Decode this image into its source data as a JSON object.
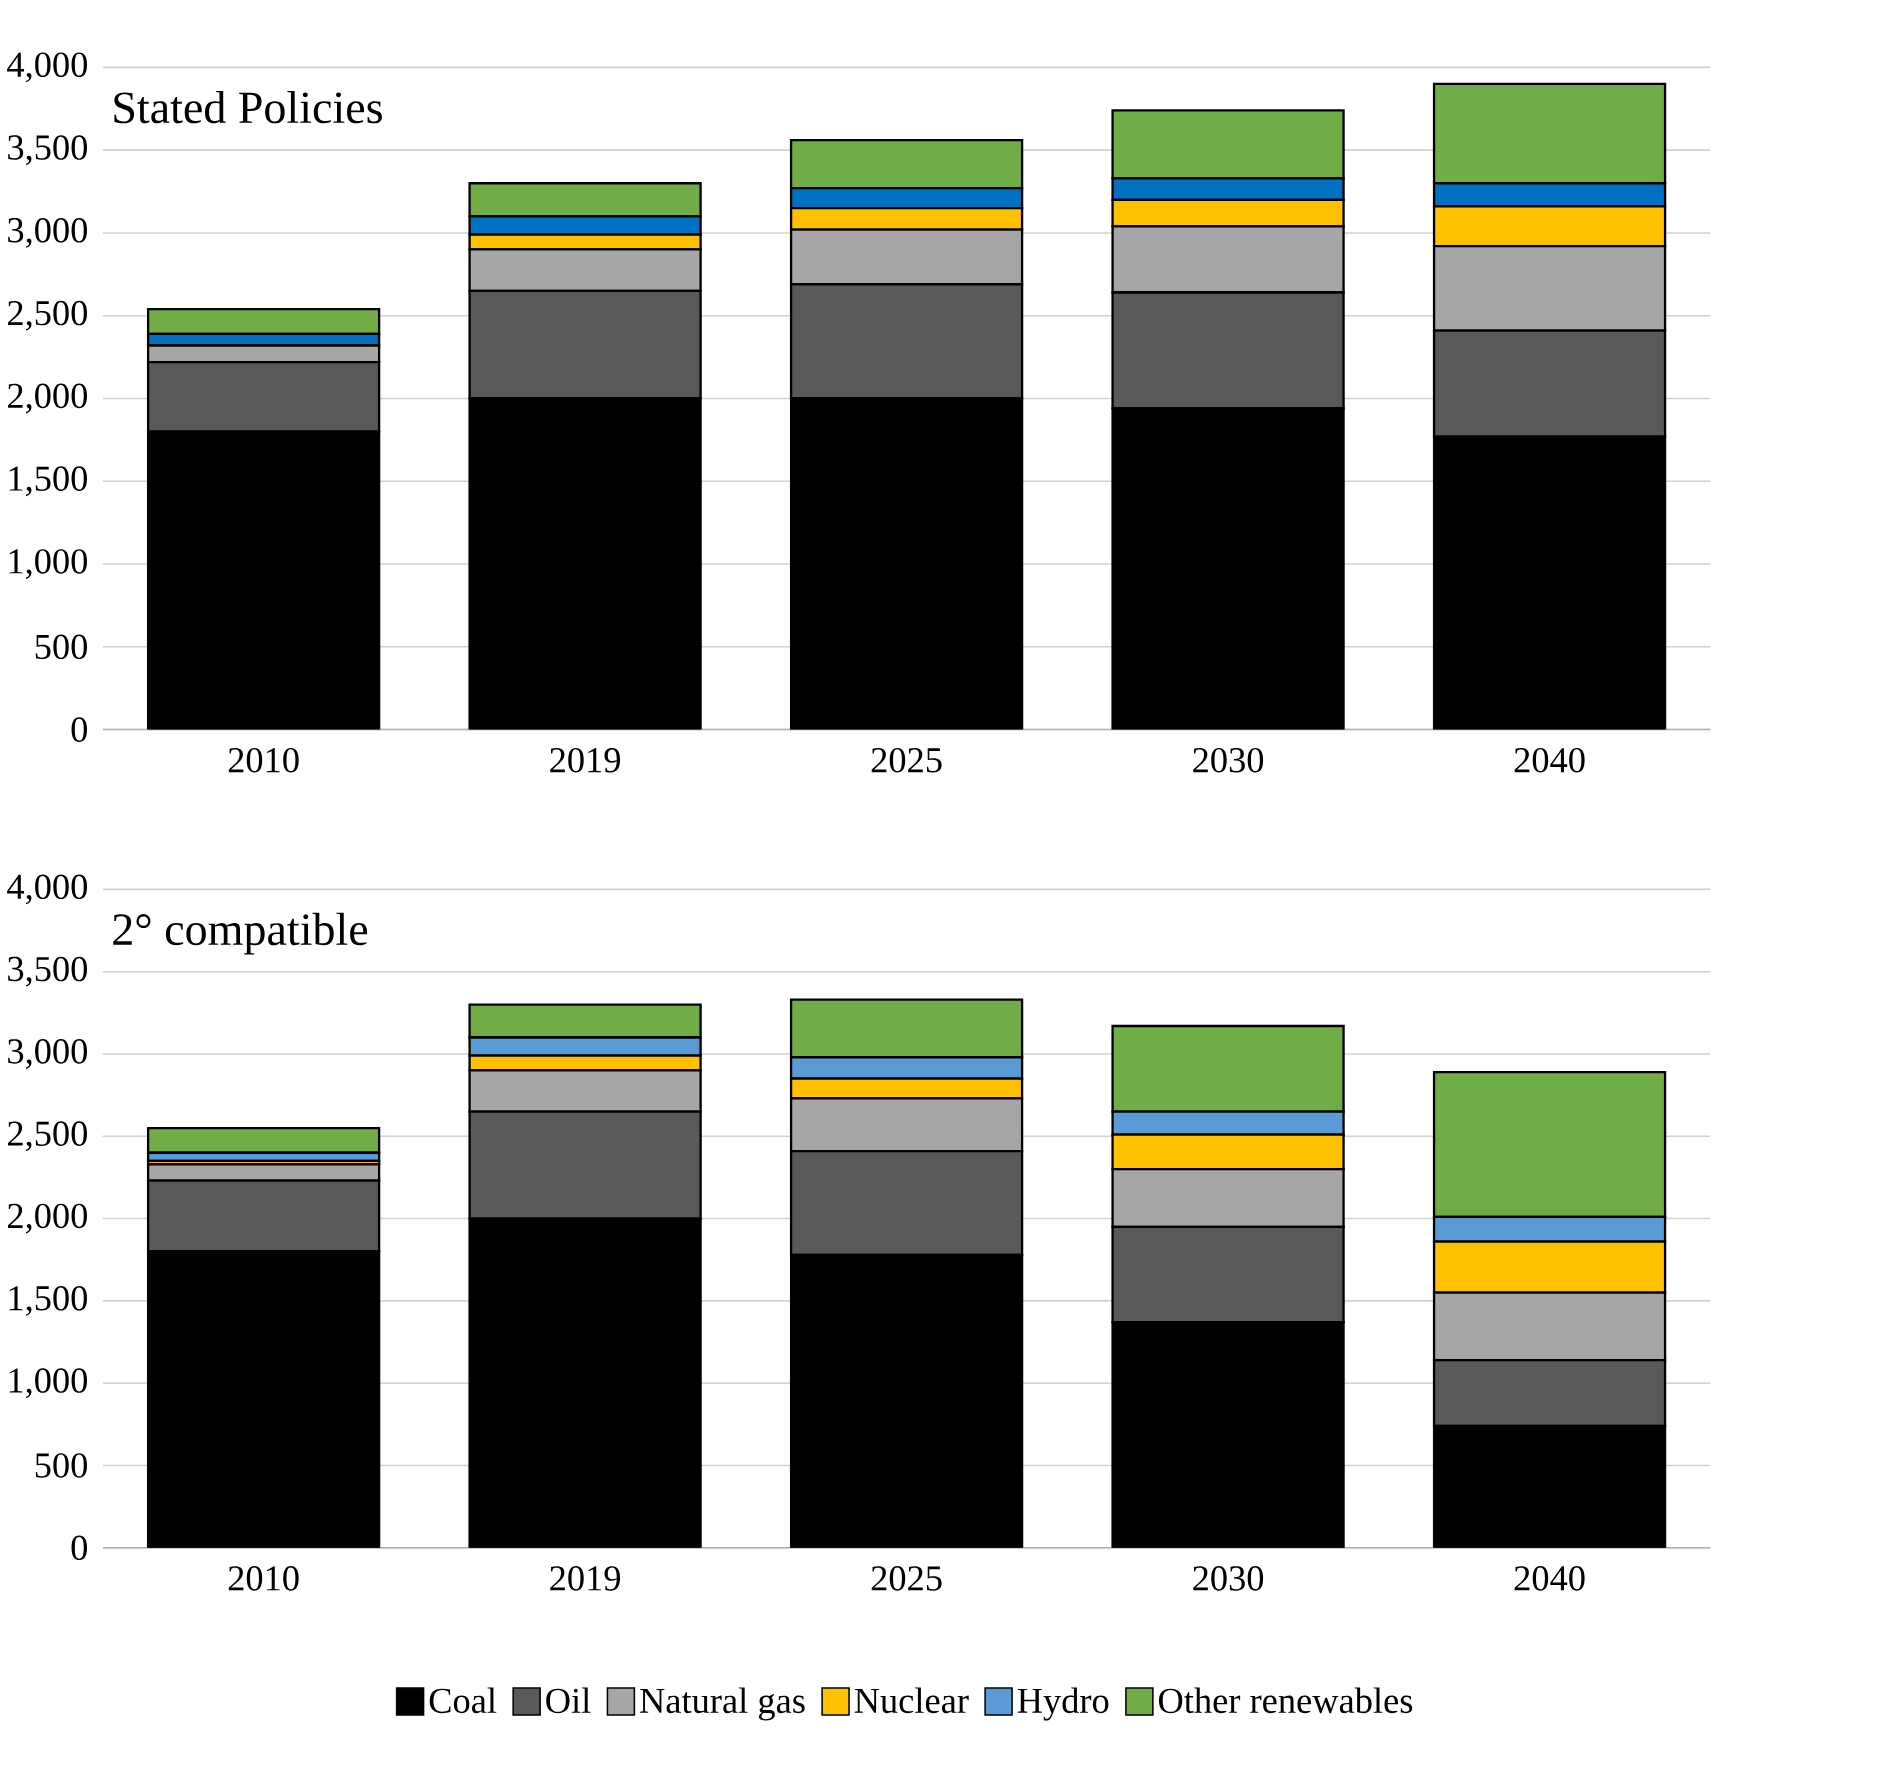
{
  "chart_data": [
    {
      "type": "bar",
      "title": "Stated Policies",
      "stacked": true,
      "grid": "y",
      "categories": [
        "2010",
        "2019",
        "2025",
        "2030",
        "2040"
      ],
      "ylim": [
        0,
        4000
      ],
      "yticks": [
        0,
        500,
        {
          "value": 1000,
          "label": "1,000"
        },
        {
          "value": 1500,
          "label": "1,500"
        },
        {
          "value": 2000,
          "label": "2,000"
        },
        {
          "value": 2500,
          "label": "2,500"
        },
        {
          "value": 3000,
          "label": "3,000"
        },
        {
          "value": 3500,
          "label": "3,500"
        },
        {
          "value": 4000,
          "label": "4,000"
        }
      ],
      "series": [
        {
          "color": "#000000",
          "values": [
            1800,
            2000,
            2000,
            1940,
            1770
          ]
        },
        {
          "color": "#595959",
          "values": [
            420,
            650,
            690,
            700,
            640
          ]
        },
        {
          "color": "#a6a6a6",
          "values": [
            100,
            250,
            330,
            400,
            510
          ]
        },
        {
          "color": "#ffc000",
          "values": [
            null,
            90,
            130,
            160,
            240
          ]
        },
        {
          "color": "#0070c0",
          "values": [
            70,
            110,
            120,
            130,
            140
          ]
        },
        {
          "color": "#70ad47",
          "values": [
            150,
            200,
            290,
            410,
            600
          ]
        }
      ]
    },
    {
      "type": "bar",
      "title": "2° compatible",
      "stacked": true,
      "grid": "y",
      "legend": "bottom",
      "categories": [
        "2010",
        "2019",
        "2025",
        "2030",
        "2040"
      ],
      "ylim": [
        0,
        4000
      ],
      "yticks": [
        0,
        500,
        {
          "value": 1000,
          "label": "1,000"
        },
        {
          "value": 1500,
          "label": "1,500"
        },
        {
          "value": 2000,
          "label": "2,000"
        },
        {
          "value": 2500,
          "label": "2,500"
        },
        {
          "value": 3000,
          "label": "3,000"
        },
        {
          "value": 3500,
          "label": "3,500"
        },
        {
          "value": 4000,
          "label": "4,000"
        }
      ],
      "series": [
        {
          "name": "Coal",
          "color": "#000000",
          "values": [
            1800,
            2000,
            1780,
            1370,
            740
          ]
        },
        {
          "name": "Oil",
          "color": "#595959",
          "values": [
            430,
            650,
            630,
            580,
            400
          ]
        },
        {
          "name": "Natural gas",
          "color": "#a6a6a6",
          "values": [
            100,
            250,
            320,
            350,
            410
          ]
        },
        {
          "name": "Nuclear",
          "color": "#ffc000",
          "values": [
            20,
            90,
            120,
            210,
            310
          ]
        },
        {
          "name": "Hydro",
          "color": "#5b9bd5",
          "values": [
            50,
            110,
            130,
            140,
            150
          ]
        },
        {
          "name": "Other renewables",
          "color": "#70ad47",
          "values": [
            150,
            200,
            350,
            520,
            880
          ]
        }
      ]
    }
  ]
}
